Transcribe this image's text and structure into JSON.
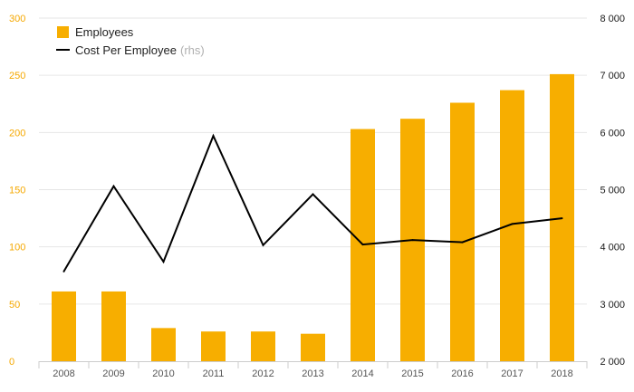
{
  "chart_data": {
    "type": "bar",
    "categories": [
      "2008",
      "2009",
      "2010",
      "2011",
      "2012",
      "2013",
      "2014",
      "2015",
      "2016",
      "2017",
      "2018"
    ],
    "series": [
      {
        "name": "Employees",
        "type": "bar",
        "axis": "left",
        "color": "#f7ae00",
        "values": [
          61,
          61,
          29,
          26,
          26,
          24,
          203,
          212,
          226,
          237,
          251
        ]
      },
      {
        "name": "Cost Per Employee",
        "legend_suffix": "(rhs)",
        "type": "line",
        "axis": "right",
        "color": "#000000",
        "values": [
          3570,
          5060,
          3740,
          5940,
          4030,
          4920,
          4040,
          4120,
          4080,
          4400,
          4500
        ]
      }
    ],
    "ylim_left": [
      0,
      300
    ],
    "yticks_left": [
      0,
      50,
      100,
      150,
      200,
      250,
      300
    ],
    "ytick_labels_left": [
      "0",
      "50",
      "100",
      "150",
      "200",
      "250",
      "300"
    ],
    "ylim_right": [
      2000,
      8000
    ],
    "yticks_right": [
      2000,
      3000,
      4000,
      5000,
      6000,
      7000,
      8000
    ],
    "ytick_labels_right": [
      "2 000",
      "3 000",
      "4 000",
      "5 000",
      "6 000",
      "7 000",
      "8 000"
    ],
    "grid": true,
    "legend_position": "top-left",
    "left_axis_color": "#f5a800",
    "right_axis_color": "#1a1a1a",
    "title": "",
    "xlabel": "",
    "ylabel": ""
  }
}
